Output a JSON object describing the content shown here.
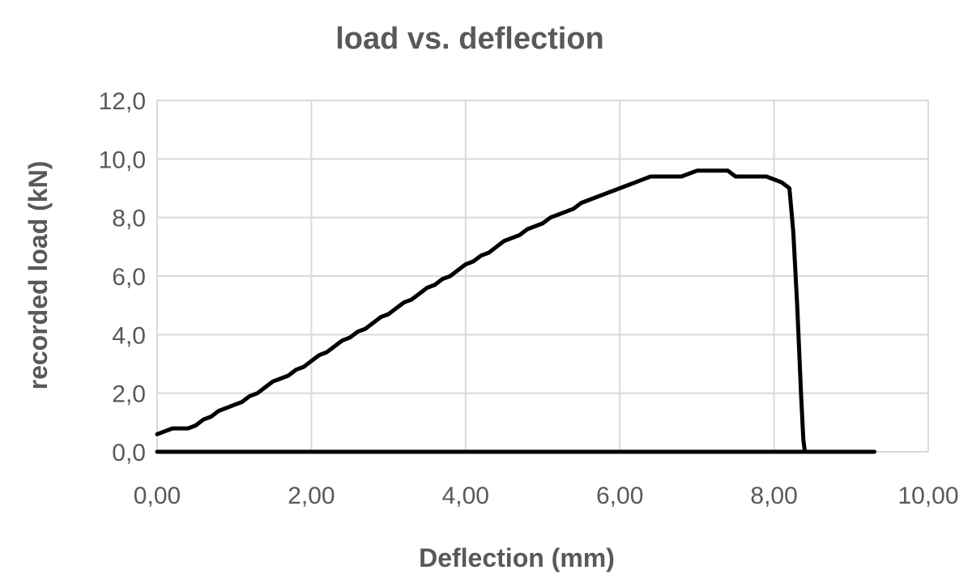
{
  "chart_data": {
    "type": "line",
    "title": "load vs. deflection",
    "xlabel": "Deflection (mm)",
    "ylabel": "recorded load (kN)",
    "xlim": [
      0,
      10
    ],
    "ylim": [
      0,
      12
    ],
    "x_ticks": [
      0,
      2,
      4,
      6,
      8,
      10
    ],
    "y_ticks": [
      0,
      2,
      4,
      6,
      8,
      10,
      12
    ],
    "x_tick_labels": [
      "0,00",
      "2,00",
      "4,00",
      "6,00",
      "8,00",
      "10,00"
    ],
    "y_tick_labels": [
      "0,0",
      "2,0",
      "4,0",
      "6,0",
      "8,0",
      "10,0",
      "12,0"
    ],
    "grid": true,
    "legend": "none",
    "series": [
      {
        "color": "#000000",
        "points": [
          [
            0.0,
            0.6
          ],
          [
            0.1,
            0.7
          ],
          [
            0.2,
            0.8
          ],
          [
            0.4,
            0.8
          ],
          [
            0.5,
            0.9
          ],
          [
            0.6,
            1.1
          ],
          [
            0.7,
            1.2
          ],
          [
            0.8,
            1.4
          ],
          [
            0.9,
            1.5
          ],
          [
            1.0,
            1.6
          ],
          [
            1.1,
            1.7
          ],
          [
            1.2,
            1.9
          ],
          [
            1.3,
            2.0
          ],
          [
            1.4,
            2.2
          ],
          [
            1.5,
            2.4
          ],
          [
            1.6,
            2.5
          ],
          [
            1.7,
            2.6
          ],
          [
            1.8,
            2.8
          ],
          [
            1.9,
            2.9
          ],
          [
            2.0,
            3.1
          ],
          [
            2.1,
            3.3
          ],
          [
            2.2,
            3.4
          ],
          [
            2.3,
            3.6
          ],
          [
            2.4,
            3.8
          ],
          [
            2.5,
            3.9
          ],
          [
            2.6,
            4.1
          ],
          [
            2.7,
            4.2
          ],
          [
            2.8,
            4.4
          ],
          [
            2.9,
            4.6
          ],
          [
            3.0,
            4.7
          ],
          [
            3.1,
            4.9
          ],
          [
            3.2,
            5.1
          ],
          [
            3.3,
            5.2
          ],
          [
            3.4,
            5.4
          ],
          [
            3.5,
            5.6
          ],
          [
            3.6,
            5.7
          ],
          [
            3.7,
            5.9
          ],
          [
            3.8,
            6.0
          ],
          [
            3.9,
            6.2
          ],
          [
            4.0,
            6.4
          ],
          [
            4.1,
            6.5
          ],
          [
            4.2,
            6.7
          ],
          [
            4.3,
            6.8
          ],
          [
            4.4,
            7.0
          ],
          [
            4.5,
            7.2
          ],
          [
            4.6,
            7.3
          ],
          [
            4.7,
            7.4
          ],
          [
            4.8,
            7.6
          ],
          [
            4.9,
            7.7
          ],
          [
            5.0,
            7.8
          ],
          [
            5.1,
            8.0
          ],
          [
            5.2,
            8.1
          ],
          [
            5.3,
            8.2
          ],
          [
            5.4,
            8.3
          ],
          [
            5.5,
            8.5
          ],
          [
            5.6,
            8.6
          ],
          [
            5.7,
            8.7
          ],
          [
            5.8,
            8.8
          ],
          [
            5.9,
            8.9
          ],
          [
            6.0,
            9.0
          ],
          [
            6.1,
            9.1
          ],
          [
            6.2,
            9.2
          ],
          [
            6.3,
            9.3
          ],
          [
            6.4,
            9.4
          ],
          [
            6.6,
            9.4
          ],
          [
            6.8,
            9.4
          ],
          [
            6.9,
            9.5
          ],
          [
            7.0,
            9.6
          ],
          [
            7.2,
            9.6
          ],
          [
            7.4,
            9.6
          ],
          [
            7.5,
            9.4
          ],
          [
            7.7,
            9.4
          ],
          [
            7.9,
            9.4
          ],
          [
            8.0,
            9.3
          ],
          [
            8.1,
            9.2
          ],
          [
            8.2,
            9.0
          ],
          [
            8.25,
            7.5
          ],
          [
            8.3,
            5.0
          ],
          [
            8.35,
            2.0
          ],
          [
            8.38,
            0.4
          ],
          [
            8.4,
            0.0
          ],
          [
            9.3,
            0.0
          ]
        ]
      },
      {
        "color": "#000000",
        "points": [
          [
            0.0,
            0.0
          ],
          [
            9.3,
            0.0
          ]
        ]
      }
    ]
  }
}
